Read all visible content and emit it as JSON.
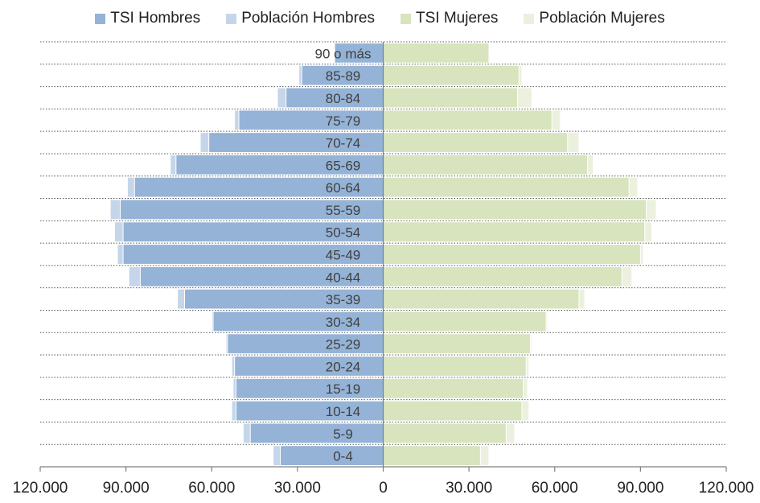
{
  "chart_data": {
    "type": "bar",
    "orientation": "horizontal",
    "stacked_mirror": true,
    "categories": [
      "0-4",
      "5-9",
      "10-14",
      "15-19",
      "20-24",
      "25-29",
      "30-34",
      "35-39",
      "40-44",
      "45-49",
      "50-54",
      "55-59",
      "60-64",
      "65-69",
      "70-74",
      "75-79",
      "80-84",
      "85-89",
      "90 o más"
    ],
    "series": [
      {
        "name": "TSI Hombres",
        "side": "left",
        "values": [
          36000,
          46500,
          51500,
          51500,
          52000,
          54500,
          59500,
          69500,
          85000,
          91000,
          91000,
          92000,
          87000,
          72500,
          61000,
          50500,
          34000,
          28500,
          17000
        ]
      },
      {
        "name": "Población Hombres",
        "side": "left",
        "values": [
          38500,
          49000,
          53000,
          52500,
          53000,
          55000,
          60000,
          72000,
          89000,
          93000,
          94000,
          95500,
          89500,
          74500,
          64000,
          52000,
          37000,
          29500,
          17000
        ]
      },
      {
        "name": "TSI Mujeres",
        "side": "right",
        "values": [
          34000,
          43000,
          48500,
          49000,
          50000,
          51500,
          57000,
          68500,
          83500,
          90000,
          91500,
          92000,
          86000,
          71500,
          64500,
          59000,
          47000,
          47500,
          37000
        ]
      },
      {
        "name": "Población Mujeres",
        "side": "right",
        "values": [
          37000,
          46000,
          51000,
          50500,
          51000,
          52000,
          57500,
          70500,
          87000,
          91000,
          94000,
          95500,
          89000,
          73500,
          68500,
          62000,
          52000,
          48500,
          37000
        ]
      }
    ],
    "xlim": [
      -120000,
      120000
    ],
    "x_ticks": [
      -120000,
      -90000,
      -60000,
      -30000,
      0,
      30000,
      60000,
      90000,
      120000
    ],
    "x_tick_labels": [
      "120.000",
      "90.000",
      "60.000",
      "30.000",
      "0",
      "30.000",
      "60.000",
      "90.000",
      "120.000"
    ],
    "legend_position": "top",
    "grid": "dotted-horizontal",
    "colors": {
      "tsi_hombres": "#95b3d7",
      "poblacion_hombres": "#dbe5f1",
      "tsi_mujeres": "#d7e4bd",
      "poblacion_mujeres": "#ebf1de",
      "axis": "#7f7f7f",
      "grid": "#595959",
      "text": "#404040"
    }
  }
}
